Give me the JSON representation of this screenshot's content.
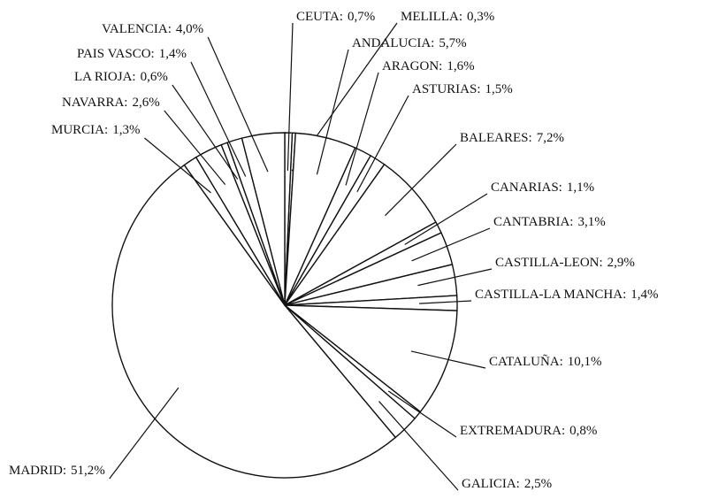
{
  "chart_data": {
    "type": "pie",
    "categories": [
      "CEUTA:",
      "MELILLA:",
      "ANDALUCIA:",
      "ARAGON:",
      "ASTURIAS:",
      "BALEARES:",
      "CANARIAS:",
      "CANTABRIA:",
      "CASTILLA-LEON:",
      "CASTILLA-LA MANCHA:",
      "CATALUÑA:",
      "EXTREMADURA:",
      "GALICIA:",
      "MADRID:",
      "MURCIA:",
      "NAVARRA:",
      "LA RIOJA:",
      "PAIS VASCO:",
      "VALENCIA:"
    ],
    "values": [
      0.7,
      0.3,
      5.7,
      1.6,
      1.5,
      7.2,
      1.1,
      3.1,
      2.9,
      1.4,
      10.1,
      0.8,
      2.5,
      51.2,
      1.3,
      2.6,
      0.6,
      1.4,
      4.0
    ],
    "value_labels": [
      "0,7%",
      "0,3%",
      "5,7%",
      "1,6%",
      "1,5%",
      "7,2%",
      "1,1%",
      "3,1%",
      "2,9%",
      "1,4%",
      "10,1%",
      "0,8%",
      "2,5%",
      "51,2%",
      "1,3%",
      "2,6%",
      "0,6%",
      "1,4%",
      "4,0%"
    ],
    "color": "#ffffff"
  }
}
